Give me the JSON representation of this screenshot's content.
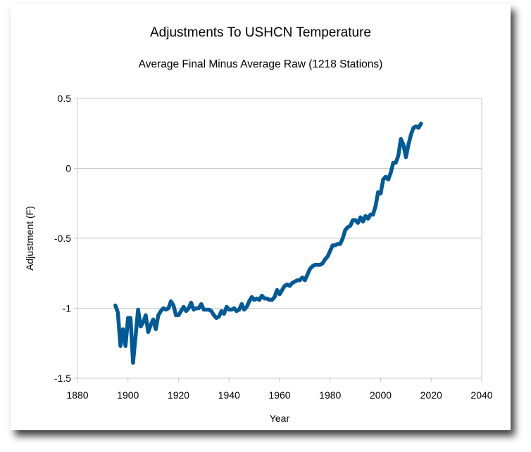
{
  "chart_data": {
    "type": "line",
    "title": "Adjustments To USHCN Temperature",
    "subtitle": "Average Final Minus Average Raw (1218 Stations)",
    "xlabel": "Year",
    "ylabel": "Adjustment (F)",
    "xlim": [
      1880,
      2040
    ],
    "ylim": [
      -1.5,
      0.5
    ],
    "xticks": [
      1880,
      1900,
      1920,
      1940,
      1960,
      1980,
      2000,
      2020,
      2040
    ],
    "yticks": [
      -1.5,
      -1,
      -0.5,
      0,
      0.5
    ],
    "xtick_labels": [
      "1880",
      "1900",
      "1920",
      "1940",
      "1960",
      "1980",
      "2000",
      "2020",
      "2040"
    ],
    "ytick_labels": [
      "-1.5",
      "-1",
      "-0.5",
      "0",
      "0.5"
    ],
    "grid": "horizontal",
    "legend": "none",
    "line_color": "#005a96",
    "series": [
      {
        "x_start": 1895,
        "x_end": 2016,
        "values": [
          -0.98,
          -1.03,
          -1.27,
          -1.15,
          -1.27,
          -1.07,
          -1.07,
          -1.39,
          -1.2,
          -1.01,
          -1.13,
          -1.1,
          -1.05,
          -1.17,
          -1.12,
          -1.08,
          -1.15,
          -1.05,
          -1.02,
          -1.0,
          -1.01,
          -1.0,
          -0.95,
          -0.98,
          -1.05,
          -1.05,
          -1.02,
          -0.99,
          -1.02,
          -1.0,
          -0.96,
          -1.01,
          -1.0,
          -1.0,
          -0.97,
          -1.01,
          -1.01,
          -1.01,
          -1.02,
          -1.05,
          -1.07,
          -1.06,
          -1.02,
          -1.04,
          -0.99,
          -1.01,
          -1.01,
          -1.0,
          -1.02,
          -1.01,
          -0.97,
          -1.01,
          -0.99,
          -0.95,
          -0.92,
          -0.94,
          -0.93,
          -0.94,
          -0.91,
          -0.93,
          -0.93,
          -0.94,
          -0.94,
          -0.92,
          -0.87,
          -0.9,
          -0.87,
          -0.84,
          -0.83,
          -0.84,
          -0.82,
          -0.81,
          -0.8,
          -0.8,
          -0.78,
          -0.8,
          -0.76,
          -0.72,
          -0.7,
          -0.69,
          -0.69,
          -0.69,
          -0.68,
          -0.65,
          -0.63,
          -0.59,
          -0.55,
          -0.55,
          -0.54,
          -0.54,
          -0.5,
          -0.44,
          -0.42,
          -0.41,
          -0.37,
          -0.37,
          -0.39,
          -0.35,
          -0.38,
          -0.34,
          -0.36,
          -0.33,
          -0.33,
          -0.27,
          -0.17,
          -0.18,
          -0.08,
          -0.06,
          -0.08,
          -0.03,
          0.04,
          0.04,
          0.09,
          0.21,
          0.17,
          0.08,
          0.17,
          0.24,
          0.29,
          0.3,
          0.29,
          0.32
        ]
      }
    ]
  }
}
